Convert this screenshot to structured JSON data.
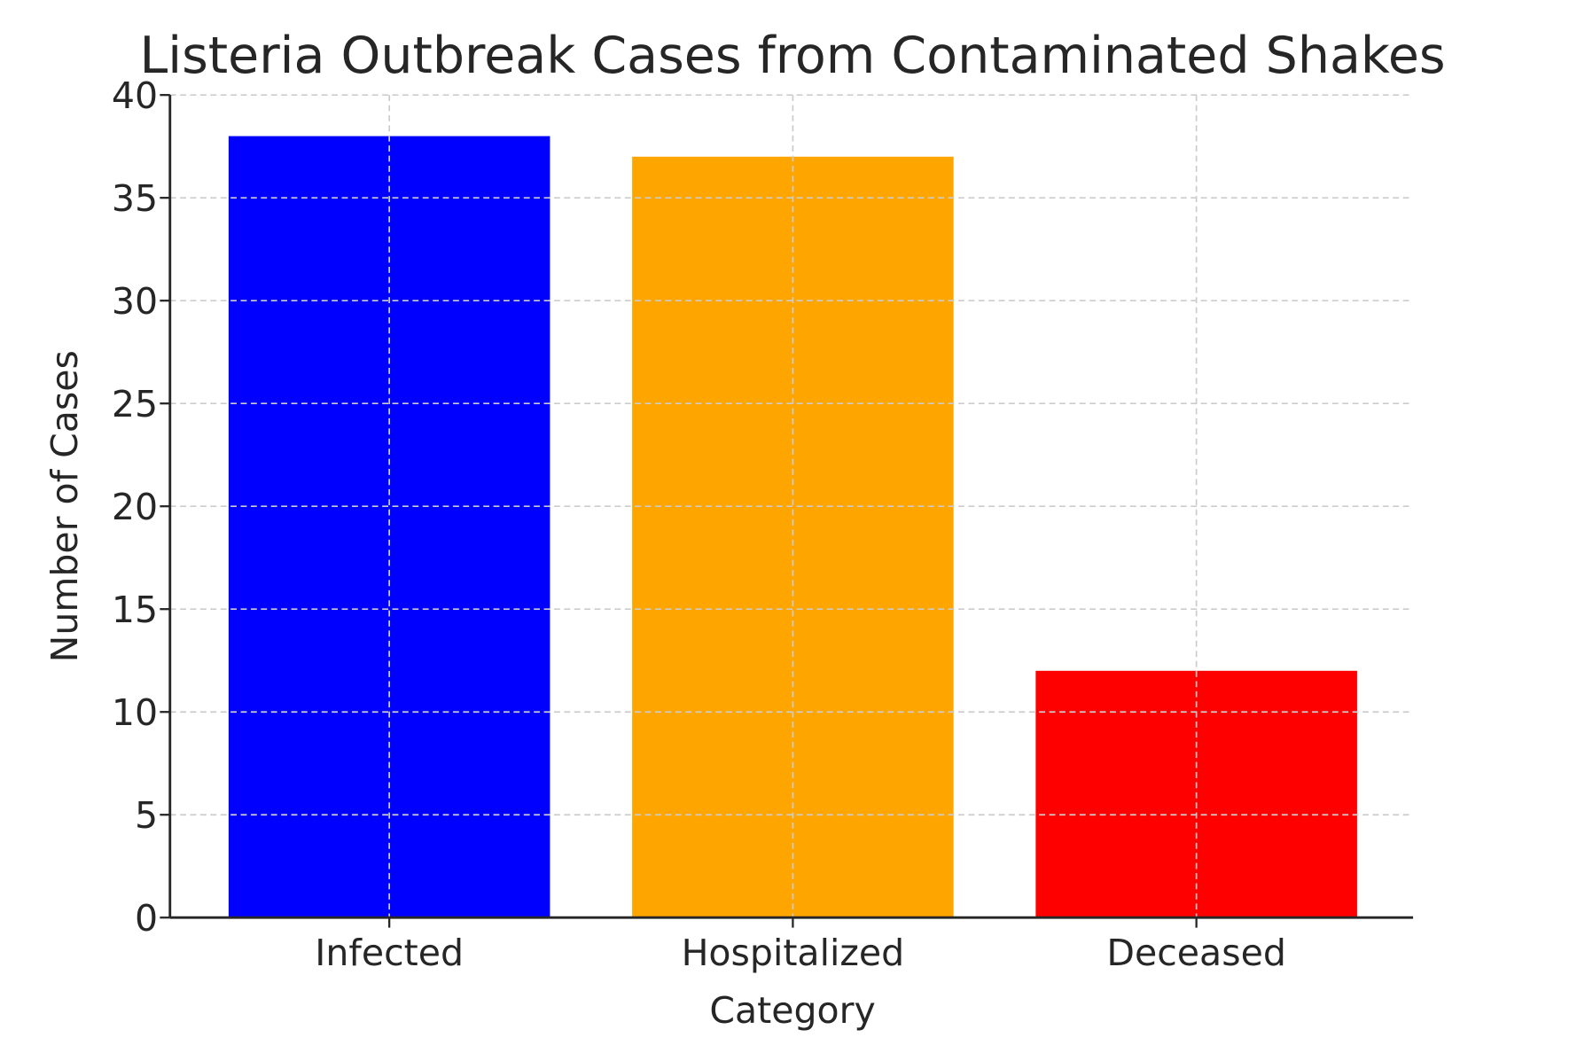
{
  "chart_data": {
    "type": "bar",
    "title": "Listeria Outbreak Cases from Contaminated Shakes",
    "xlabel": "Category",
    "ylabel": "Number of Cases",
    "categories": [
      "Infected",
      "Hospitalized",
      "Deceased"
    ],
    "values": [
      38,
      37,
      12
    ],
    "colors": [
      "#0000ff",
      "#ffa500",
      "#ff0000"
    ],
    "ylim": [
      0,
      40
    ],
    "yticks": [
      0,
      5,
      10,
      15,
      20,
      25,
      30,
      35,
      40
    ],
    "grid": true,
    "grid_style": "dashed",
    "legend": "none"
  }
}
